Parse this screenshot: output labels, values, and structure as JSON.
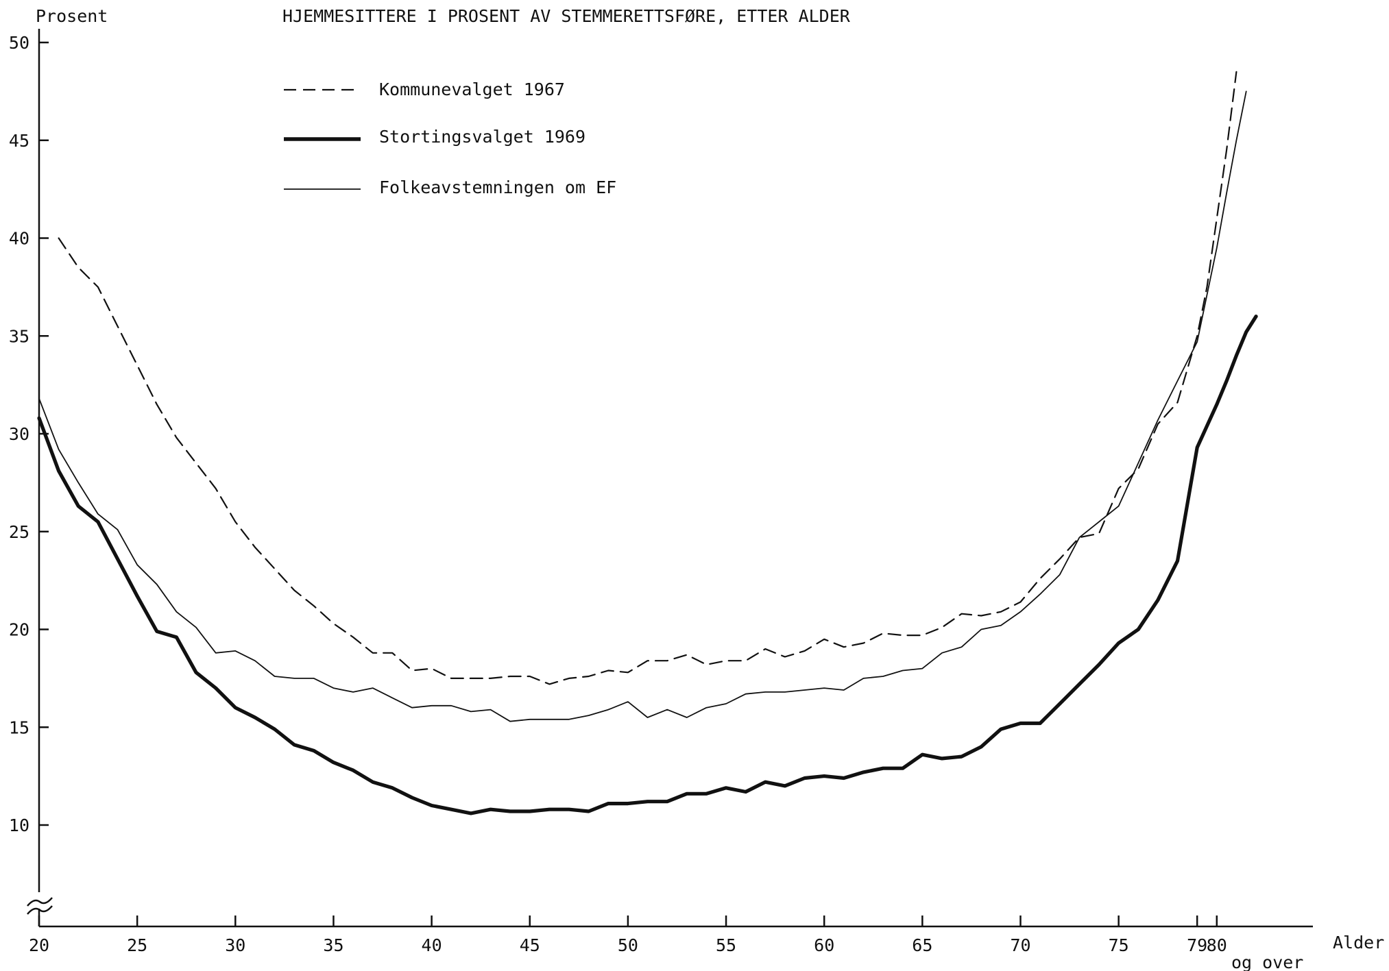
{
  "chart_data": {
    "type": "line",
    "title": "HJEMMESITTERE I PROSENT AV STEMMERETTSFØRE, ETTER ALDER",
    "ylabel": "Prosent",
    "xlabel": "Alder",
    "xlabel_sub": "og over",
    "ylim": [
      5,
      50
    ],
    "xlim": [
      20,
      82.4
    ],
    "y_ticks": [
      10,
      15,
      20,
      25,
      30,
      35,
      40,
      45,
      50
    ],
    "x_ticks": [
      {
        "value": 20,
        "label": "20"
      },
      {
        "value": 25,
        "label": "25"
      },
      {
        "value": 30,
        "label": "30"
      },
      {
        "value": 35,
        "label": "35"
      },
      {
        "value": 40,
        "label": "40"
      },
      {
        "value": 45,
        "label": "45"
      },
      {
        "value": 50,
        "label": "50"
      },
      {
        "value": 55,
        "label": "55"
      },
      {
        "value": 60,
        "label": "60"
      },
      {
        "value": 65,
        "label": "65"
      },
      {
        "value": 70,
        "label": "70"
      },
      {
        "value": 75,
        "label": "75"
      },
      {
        "value": 79,
        "label": "79"
      },
      {
        "value": 80,
        "label": "80"
      }
    ],
    "axis_break": "y-axis break near bottom",
    "grid": false,
    "legend_position": "top-left",
    "series": [
      {
        "name": "Kommunevalget 1967",
        "style": "dashed",
        "points": [
          [
            21,
            40
          ],
          [
            22,
            38.5
          ],
          [
            23,
            37.5
          ],
          [
            24,
            35.5
          ],
          [
            25,
            33.5
          ],
          [
            26,
            31.5
          ],
          [
            27,
            29.8
          ],
          [
            28,
            28.5
          ],
          [
            29,
            27.2
          ],
          [
            30,
            25.5
          ],
          [
            31,
            24.2
          ],
          [
            32,
            23.1
          ],
          [
            33,
            22
          ],
          [
            34,
            21.2
          ],
          [
            35,
            20.3
          ],
          [
            36,
            19.6
          ],
          [
            37,
            18.8
          ],
          [
            38,
            18.8
          ],
          [
            39,
            17.9
          ],
          [
            40,
            18
          ],
          [
            41,
            17.5
          ],
          [
            42,
            17.5
          ],
          [
            43,
            17.5
          ],
          [
            44,
            17.6
          ],
          [
            45,
            17.6
          ],
          [
            46,
            17.2
          ],
          [
            47,
            17.5
          ],
          [
            48,
            17.6
          ],
          [
            49,
            17.9
          ],
          [
            50,
            17.8
          ],
          [
            51,
            18.4
          ],
          [
            52,
            18.4
          ],
          [
            53,
            18.7
          ],
          [
            54,
            18.2
          ],
          [
            55,
            18.4
          ],
          [
            56,
            18.4
          ],
          [
            57,
            19
          ],
          [
            58,
            18.6
          ],
          [
            59,
            18.9
          ],
          [
            60,
            19.5
          ],
          [
            61,
            19.1
          ],
          [
            62,
            19.3
          ],
          [
            63,
            19.8
          ],
          [
            64,
            19.7
          ],
          [
            65,
            19.7
          ],
          [
            66,
            20.1
          ],
          [
            67,
            20.8
          ],
          [
            68,
            20.7
          ],
          [
            69,
            20.9
          ],
          [
            70,
            21.4
          ],
          [
            71,
            22.6
          ],
          [
            72,
            23.6
          ],
          [
            73,
            24.7
          ],
          [
            74,
            24.9
          ],
          [
            75,
            27.2
          ],
          [
            76,
            28.2
          ],
          [
            77,
            30.5
          ],
          [
            78,
            31.6
          ],
          [
            79,
            35
          ],
          [
            79.5,
            37.5
          ],
          [
            80,
            41
          ],
          [
            80.5,
            44.5
          ],
          [
            81,
            48.5
          ]
        ]
      },
      {
        "name": "Stortingsvalget 1969",
        "style": "solid-thick",
        "points": [
          [
            20,
            30.8
          ],
          [
            21,
            28.1
          ],
          [
            22,
            26.3
          ],
          [
            23,
            25.5
          ],
          [
            24,
            23.6
          ],
          [
            25,
            21.7
          ],
          [
            26,
            19.9
          ],
          [
            27,
            19.6
          ],
          [
            28,
            17.8
          ],
          [
            29,
            17
          ],
          [
            30,
            16
          ],
          [
            31,
            15.5
          ],
          [
            32,
            14.9
          ],
          [
            33,
            14.1
          ],
          [
            34,
            13.8
          ],
          [
            35,
            13.2
          ],
          [
            36,
            12.8
          ],
          [
            37,
            12.2
          ],
          [
            38,
            11.9
          ],
          [
            39,
            11.4
          ],
          [
            40,
            11
          ],
          [
            41,
            10.8
          ],
          [
            42,
            10.6
          ],
          [
            43,
            10.8
          ],
          [
            44,
            10.7
          ],
          [
            45,
            10.7
          ],
          [
            46,
            10.8
          ],
          [
            47,
            10.8
          ],
          [
            48,
            10.7
          ],
          [
            49,
            11.1
          ],
          [
            50,
            11.1
          ],
          [
            51,
            11.2
          ],
          [
            52,
            11.2
          ],
          [
            53,
            11.6
          ],
          [
            54,
            11.6
          ],
          [
            55,
            11.9
          ],
          [
            56,
            11.7
          ],
          [
            57,
            12.2
          ],
          [
            58,
            12
          ],
          [
            59,
            12.4
          ],
          [
            60,
            12.5
          ],
          [
            61,
            12.4
          ],
          [
            62,
            12.7
          ],
          [
            63,
            12.9
          ],
          [
            64,
            12.9
          ],
          [
            65,
            13.6
          ],
          [
            66,
            13.4
          ],
          [
            67,
            13.5
          ],
          [
            68,
            14
          ],
          [
            69,
            14.9
          ],
          [
            70,
            15.2
          ],
          [
            71,
            15.2
          ],
          [
            72,
            16.2
          ],
          [
            73,
            17.2
          ],
          [
            74,
            18.2
          ],
          [
            75,
            19.3
          ],
          [
            76,
            20
          ],
          [
            77,
            21.5
          ],
          [
            78,
            23.5
          ],
          [
            79,
            29.3
          ],
          [
            79.5,
            30.4
          ],
          [
            80,
            31.5
          ],
          [
            80.5,
            32.7
          ],
          [
            81,
            34
          ],
          [
            81.5,
            35.2
          ],
          [
            82,
            36
          ]
        ]
      },
      {
        "name": "Folkeavstemningen om EF",
        "style": "solid-thin",
        "points": [
          [
            20,
            31.8
          ],
          [
            21,
            29.2
          ],
          [
            22,
            27.5
          ],
          [
            23,
            25.9
          ],
          [
            24,
            25.1
          ],
          [
            25,
            23.3
          ],
          [
            26,
            22.3
          ],
          [
            27,
            20.9
          ],
          [
            28,
            20.1
          ],
          [
            29,
            18.8
          ],
          [
            30,
            18.9
          ],
          [
            31,
            18.4
          ],
          [
            32,
            17.6
          ],
          [
            33,
            17.5
          ],
          [
            34,
            17.5
          ],
          [
            35,
            17
          ],
          [
            36,
            16.8
          ],
          [
            37,
            17
          ],
          [
            38,
            16.5
          ],
          [
            39,
            16
          ],
          [
            40,
            16.1
          ],
          [
            41,
            16.1
          ],
          [
            42,
            15.8
          ],
          [
            43,
            15.9
          ],
          [
            44,
            15.3
          ],
          [
            45,
            15.4
          ],
          [
            46,
            15.4
          ],
          [
            47,
            15.4
          ],
          [
            48,
            15.6
          ],
          [
            49,
            15.9
          ],
          [
            50,
            16.3
          ],
          [
            51,
            15.5
          ],
          [
            52,
            15.9
          ],
          [
            53,
            15.5
          ],
          [
            54,
            16
          ],
          [
            55,
            16.2
          ],
          [
            56,
            16.7
          ],
          [
            57,
            16.8
          ],
          [
            58,
            16.8
          ],
          [
            59,
            16.9
          ],
          [
            60,
            17
          ],
          [
            61,
            16.9
          ],
          [
            62,
            17.5
          ],
          [
            63,
            17.6
          ],
          [
            64,
            17.9
          ],
          [
            65,
            18
          ],
          [
            66,
            18.8
          ],
          [
            67,
            19.1
          ],
          [
            68,
            20
          ],
          [
            69,
            20.2
          ],
          [
            70,
            20.9
          ],
          [
            71,
            21.8
          ],
          [
            72,
            22.8
          ],
          [
            73,
            24.7
          ],
          [
            74,
            25.5
          ],
          [
            75,
            26.3
          ],
          [
            76,
            28.5
          ],
          [
            77,
            30.7
          ],
          [
            78,
            32.7
          ],
          [
            79,
            34.7
          ],
          [
            80,
            39.5
          ],
          [
            80.5,
            42.3
          ],
          [
            81,
            45
          ],
          [
            81.5,
            47.5
          ]
        ]
      }
    ]
  }
}
